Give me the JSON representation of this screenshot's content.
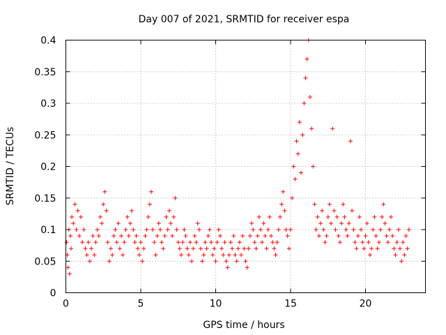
{
  "chart_data": {
    "type": "scatter",
    "title": "Day 007 of 2021, SRMTID for receiver espa",
    "xlabel": "GPS time / hours",
    "ylabel": "SRMTID / TECUs",
    "xlim": [
      0,
      24
    ],
    "ylim": [
      0,
      0.4
    ],
    "x_ticks": [
      0,
      5,
      10,
      15,
      20
    ],
    "x_tick_labels": [
      "0",
      "5",
      "10",
      "15",
      "20"
    ],
    "y_ticks": [
      0,
      0.05,
      0.1,
      0.15,
      0.2,
      0.25,
      0.3,
      0.35,
      0.4
    ],
    "y_tick_labels": [
      "0",
      "0.05",
      "0.1",
      "0.15",
      "0.2",
      "0.25",
      "0.3",
      "0.35",
      "0.4"
    ],
    "grid": true,
    "marker": "+",
    "color": "#ff0000",
    "series": [
      {
        "name": "espa",
        "points": [
          [
            0.05,
            0.08
          ],
          [
            0.1,
            0.06
          ],
          [
            0.15,
            0.04
          ],
          [
            0.2,
            0.1
          ],
          [
            0.25,
            0.03
          ],
          [
            0.3,
            0.09
          ],
          [
            0.35,
            0.07
          ],
          [
            0.4,
            0.12
          ],
          [
            0.5,
            0.11
          ],
          [
            0.6,
            0.14
          ],
          [
            0.7,
            0.1
          ],
          [
            0.8,
            0.13
          ],
          [
            0.9,
            0.09
          ],
          [
            1.0,
            0.12
          ],
          [
            1.1,
            0.08
          ],
          [
            1.2,
            0.1
          ],
          [
            1.3,
            0.07
          ],
          [
            1.4,
            0.06
          ],
          [
            1.5,
            0.08
          ],
          [
            1.6,
            0.05
          ],
          [
            1.7,
            0.07
          ],
          [
            1.8,
            0.09
          ],
          [
            1.9,
            0.06
          ],
          [
            2.0,
            0.08
          ],
          [
            2.1,
            0.1
          ],
          [
            2.2,
            0.09
          ],
          [
            2.3,
            0.12
          ],
          [
            2.4,
            0.11
          ],
          [
            2.5,
            0.14
          ],
          [
            2.6,
            0.16
          ],
          [
            2.7,
            0.13
          ],
          [
            2.8,
            0.08
          ],
          [
            2.9,
            0.05
          ],
          [
            3.0,
            0.07
          ],
          [
            3.1,
            0.06
          ],
          [
            3.2,
            0.09
          ],
          [
            3.3,
            0.1
          ],
          [
            3.4,
            0.08
          ],
          [
            3.5,
            0.11
          ],
          [
            3.6,
            0.07
          ],
          [
            3.7,
            0.09
          ],
          [
            3.8,
            0.06
          ],
          [
            3.9,
            0.08
          ],
          [
            4.0,
            0.1
          ],
          [
            4.1,
            0.12
          ],
          [
            4.2,
            0.09
          ],
          [
            4.3,
            0.11
          ],
          [
            4.4,
            0.13
          ],
          [
            4.5,
            0.1
          ],
          [
            4.6,
            0.08
          ],
          [
            4.7,
            0.09
          ],
          [
            4.8,
            0.07
          ],
          [
            4.9,
            0.06
          ],
          [
            5.0,
            0.08
          ],
          [
            5.1,
            0.05
          ],
          [
            5.2,
            0.07
          ],
          [
            5.3,
            0.09
          ],
          [
            5.4,
            0.1
          ],
          [
            5.5,
            0.12
          ],
          [
            5.6,
            0.14
          ],
          [
            5.7,
            0.16
          ],
          [
            5.8,
            0.1
          ],
          [
            5.9,
            0.08
          ],
          [
            6.0,
            0.06
          ],
          [
            6.1,
            0.09
          ],
          [
            6.2,
            0.11
          ],
          [
            6.3,
            0.1
          ],
          [
            6.4,
            0.08
          ],
          [
            6.5,
            0.07
          ],
          [
            6.6,
            0.09
          ],
          [
            6.7,
            0.12
          ],
          [
            6.8,
            0.1
          ],
          [
            6.9,
            0.13
          ],
          [
            7.0,
            0.11
          ],
          [
            7.1,
            0.09
          ],
          [
            7.2,
            0.12
          ],
          [
            7.3,
            0.15
          ],
          [
            7.4,
            0.1
          ],
          [
            7.5,
            0.08
          ],
          [
            7.6,
            0.07
          ],
          [
            7.7,
            0.06
          ],
          [
            7.8,
            0.08
          ],
          [
            7.9,
            0.1
          ],
          [
            8.0,
            0.09
          ],
          [
            8.1,
            0.07
          ],
          [
            8.2,
            0.06
          ],
          [
            8.3,
            0.08
          ],
          [
            8.4,
            0.05
          ],
          [
            8.5,
            0.07
          ],
          [
            8.6,
            0.09
          ],
          [
            8.7,
            0.08
          ],
          [
            8.8,
            0.11
          ],
          [
            8.9,
            0.1
          ],
          [
            9.0,
            0.07
          ],
          [
            9.1,
            0.05
          ],
          [
            9.2,
            0.06
          ],
          [
            9.3,
            0.08
          ],
          [
            9.4,
            0.07
          ],
          [
            9.5,
            0.09
          ],
          [
            9.6,
            0.1
          ],
          [
            9.7,
            0.08
          ],
          [
            9.8,
            0.06
          ],
          [
            9.9,
            0.07
          ],
          [
            10.0,
            0.05
          ],
          [
            10.1,
            0.08
          ],
          [
            10.2,
            0.1
          ],
          [
            10.3,
            0.09
          ],
          [
            10.4,
            0.07
          ],
          [
            10.5,
            0.06
          ],
          [
            10.6,
            0.08
          ],
          [
            10.7,
            0.05
          ],
          [
            10.8,
            0.04
          ],
          [
            10.9,
            0.06
          ],
          [
            11.0,
            0.08
          ],
          [
            11.1,
            0.07
          ],
          [
            11.2,
            0.09
          ],
          [
            11.3,
            0.06
          ],
          [
            11.4,
            0.05
          ],
          [
            11.5,
            0.07
          ],
          [
            11.6,
            0.08
          ],
          [
            11.7,
            0.06
          ],
          [
            11.8,
            0.09
          ],
          [
            11.9,
            0.07
          ],
          [
            12.0,
            0.05
          ],
          [
            12.1,
            0.04
          ],
          [
            12.2,
            0.07
          ],
          [
            12.3,
            0.09
          ],
          [
            12.4,
            0.11
          ],
          [
            12.5,
            0.1
          ],
          [
            12.6,
            0.08
          ],
          [
            12.7,
            0.07
          ],
          [
            12.8,
            0.09
          ],
          [
            12.9,
            0.12
          ],
          [
            13.0,
            0.1
          ],
          [
            13.1,
            0.08
          ],
          [
            13.2,
            0.11
          ],
          [
            13.3,
            0.09
          ],
          [
            13.4,
            0.07
          ],
          [
            13.5,
            0.1
          ],
          [
            13.6,
            0.12
          ],
          [
            13.7,
            0.09
          ],
          [
            13.8,
            0.08
          ],
          [
            13.9,
            0.07
          ],
          [
            14.0,
            0.06
          ],
          [
            14.1,
            0.08
          ],
          [
            14.2,
            0.1
          ],
          [
            14.3,
            0.12
          ],
          [
            14.4,
            0.14
          ],
          [
            14.5,
            0.16
          ],
          [
            14.6,
            0.13
          ],
          [
            14.7,
            0.1
          ],
          [
            14.8,
            0.09
          ],
          [
            14.9,
            0.07
          ],
          [
            15.0,
            0.1
          ],
          [
            15.1,
            0.15
          ],
          [
            15.2,
            0.2
          ],
          [
            15.3,
            0.18
          ],
          [
            15.4,
            0.24
          ],
          [
            15.5,
            0.22
          ],
          [
            15.6,
            0.27
          ],
          [
            15.7,
            0.19
          ],
          [
            15.8,
            0.25
          ],
          [
            15.9,
            0.3
          ],
          [
            16.0,
            0.34
          ],
          [
            16.1,
            0.37
          ],
          [
            16.2,
            0.4
          ],
          [
            16.3,
            0.31
          ],
          [
            16.4,
            0.26
          ],
          [
            16.5,
            0.2
          ],
          [
            16.6,
            0.14
          ],
          [
            16.7,
            0.1
          ],
          [
            16.8,
            0.12
          ],
          [
            16.9,
            0.09
          ],
          [
            17.0,
            0.11
          ],
          [
            17.1,
            0.13
          ],
          [
            17.2,
            0.1
          ],
          [
            17.3,
            0.08
          ],
          [
            17.4,
            0.09
          ],
          [
            17.5,
            0.12
          ],
          [
            17.6,
            0.14
          ],
          [
            17.7,
            0.11
          ],
          [
            17.8,
            0.26
          ],
          [
            17.9,
            0.13
          ],
          [
            18.0,
            0.1
          ],
          [
            18.1,
            0.12
          ],
          [
            18.2,
            0.09
          ],
          [
            18.3,
            0.08
          ],
          [
            18.4,
            0.11
          ],
          [
            18.5,
            0.14
          ],
          [
            18.6,
            0.12
          ],
          [
            18.7,
            0.1
          ],
          [
            18.8,
            0.09
          ],
          [
            18.9,
            0.11
          ],
          [
            19.0,
            0.24
          ],
          [
            19.1,
            0.13
          ],
          [
            19.2,
            0.1
          ],
          [
            19.3,
            0.08
          ],
          [
            19.4,
            0.07
          ],
          [
            19.5,
            0.09
          ],
          [
            19.6,
            0.12
          ],
          [
            19.7,
            0.1
          ],
          [
            19.8,
            0.08
          ],
          [
            19.9,
            0.07
          ],
          [
            20.0,
            0.09
          ],
          [
            20.1,
            0.11
          ],
          [
            20.2,
            0.08
          ],
          [
            20.3,
            0.06
          ],
          [
            20.4,
            0.07
          ],
          [
            20.5,
            0.1
          ],
          [
            20.6,
            0.12
          ],
          [
            20.7,
            0.09
          ],
          [
            20.8,
            0.07
          ],
          [
            20.9,
            0.08
          ],
          [
            21.0,
            0.1
          ],
          [
            21.1,
            0.12
          ],
          [
            21.2,
            0.14
          ],
          [
            21.3,
            0.11
          ],
          [
            21.4,
            0.09
          ],
          [
            21.5,
            0.08
          ],
          [
            21.6,
            0.1
          ],
          [
            21.7,
            0.12
          ],
          [
            21.8,
            0.09
          ],
          [
            21.9,
            0.07
          ],
          [
            22.0,
            0.06
          ],
          [
            22.1,
            0.08
          ],
          [
            22.2,
            0.1
          ],
          [
            22.3,
            0.07
          ],
          [
            22.4,
            0.05
          ],
          [
            22.5,
            0.08
          ],
          [
            22.6,
            0.06
          ],
          [
            22.7,
            0.09
          ],
          [
            22.8,
            0.07
          ],
          [
            22.9,
            0.1
          ]
        ]
      }
    ]
  }
}
